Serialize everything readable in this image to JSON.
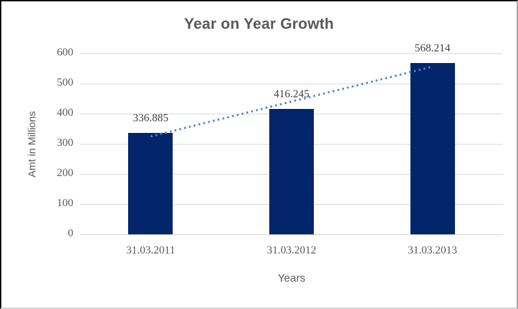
{
  "chart_data": {
    "type": "bar",
    "title": "Year on Year Growth",
    "xlabel": "Years",
    "ylabel": "Amt in Millions",
    "categories": [
      "31.03.2011",
      "31.03.2012",
      "31.03.2013"
    ],
    "values": [
      336.885,
      416.245,
      568.214
    ],
    "data_labels": [
      "336.885",
      "416.245",
      "568.214"
    ],
    "ylim": [
      0,
      600
    ],
    "ytick_step": 100,
    "grid": true,
    "legend": "none",
    "bar_color": "#03256b",
    "trendline": {
      "type": "linear",
      "style": "dotted",
      "color": "#4e87c3"
    },
    "gridline_color": "#d9d9d9",
    "label_color": "#3f3f3f",
    "axis_text_color": "#595959"
  }
}
